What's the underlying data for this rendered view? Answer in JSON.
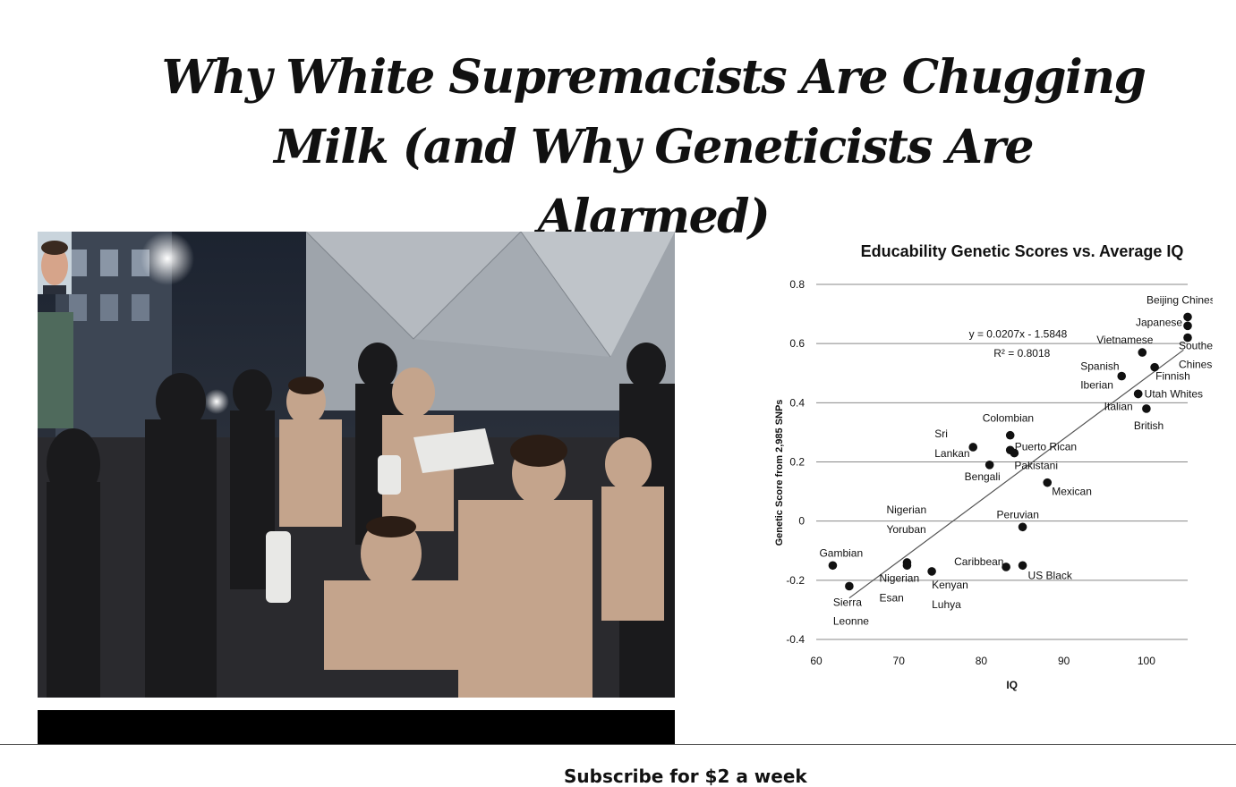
{
  "article": {
    "headline_line1": "Why White Supremacists Are Chugging",
    "headline_line2": "Milk (and Why Geneticists Are Alarmed)",
    "footer_text": "Subscribe for $2 a week"
  },
  "photo": {
    "subject": "group-drinking-milk-photo",
    "avatar": "politician-face-avatar"
  },
  "chart_data": {
    "type": "scatter",
    "title": "Educability Genetic Scores vs. Average IQ",
    "xlabel": "IQ",
    "ylabel": "Genetic Score from 2,985 SNPs",
    "xlim": [
      60,
      105
    ],
    "ylim": [
      -0.4,
      0.8
    ],
    "xticks": [
      60,
      70,
      80,
      90,
      100
    ],
    "yticks": [
      -0.4,
      -0.2,
      0,
      0.2,
      0.4,
      0.6,
      0.8
    ],
    "ytick_labels": [
      "-0.4",
      "-0.2",
      "0",
      "0.2",
      "0.4",
      "0.6",
      "0.8"
    ],
    "grid": "horizontal",
    "trendline": {
      "slope": 0.0207,
      "intercept": -1.5848,
      "x_range": [
        64,
        104.5
      ]
    },
    "equation_label": "y = 0.0207x - 1.5848",
    "r2_label": "R² = 0.8018",
    "points": [
      {
        "label": "Beijing Chinese",
        "x": 105,
        "y": 0.69
      },
      {
        "label": "Japanese",
        "x": 105,
        "y": 0.66
      },
      {
        "label": "Southern Chinese",
        "x": 105,
        "y": 0.62
      },
      {
        "label": "Vietnamese",
        "x": 99.5,
        "y": 0.57
      },
      {
        "label": "Finnish",
        "x": 101,
        "y": 0.52
      },
      {
        "label": "Spanish Iberian",
        "x": 97,
        "y": 0.49
      },
      {
        "label": "Italian",
        "x": 99,
        "y": 0.43
      },
      {
        "label": "Utah Whites",
        "x": 99,
        "y": 0.43
      },
      {
        "label": "British",
        "x": 100,
        "y": 0.38
      },
      {
        "label": "Colombian",
        "x": 83.5,
        "y": 0.29
      },
      {
        "label": "Sri Lankan",
        "x": 79,
        "y": 0.25
      },
      {
        "label": "Puerto Rican",
        "x": 83.5,
        "y": 0.24
      },
      {
        "label": "Pakistani",
        "x": 84,
        "y": 0.23
      },
      {
        "label": "Bengali",
        "x": 81,
        "y": 0.19
      },
      {
        "label": "Mexican",
        "x": 88,
        "y": 0.13
      },
      {
        "label": "Peruvian",
        "x": 85,
        "y": -0.02
      },
      {
        "label": "Nigerian Yoruban",
        "x": 71,
        "y": -0.14
      },
      {
        "label": "Gambian",
        "x": 62,
        "y": -0.15
      },
      {
        "label": "Caribbean",
        "x": 83,
        "y": -0.155
      },
      {
        "label": "US Black",
        "x": 85,
        "y": -0.15
      },
      {
        "label": "Nigerian Esan",
        "x": 71,
        "y": -0.15
      },
      {
        "label": "Kenyan Luhya",
        "x": 74,
        "y": -0.17
      },
      {
        "label": "Sierra Leonne",
        "x": 64,
        "y": -0.22
      }
    ]
  }
}
